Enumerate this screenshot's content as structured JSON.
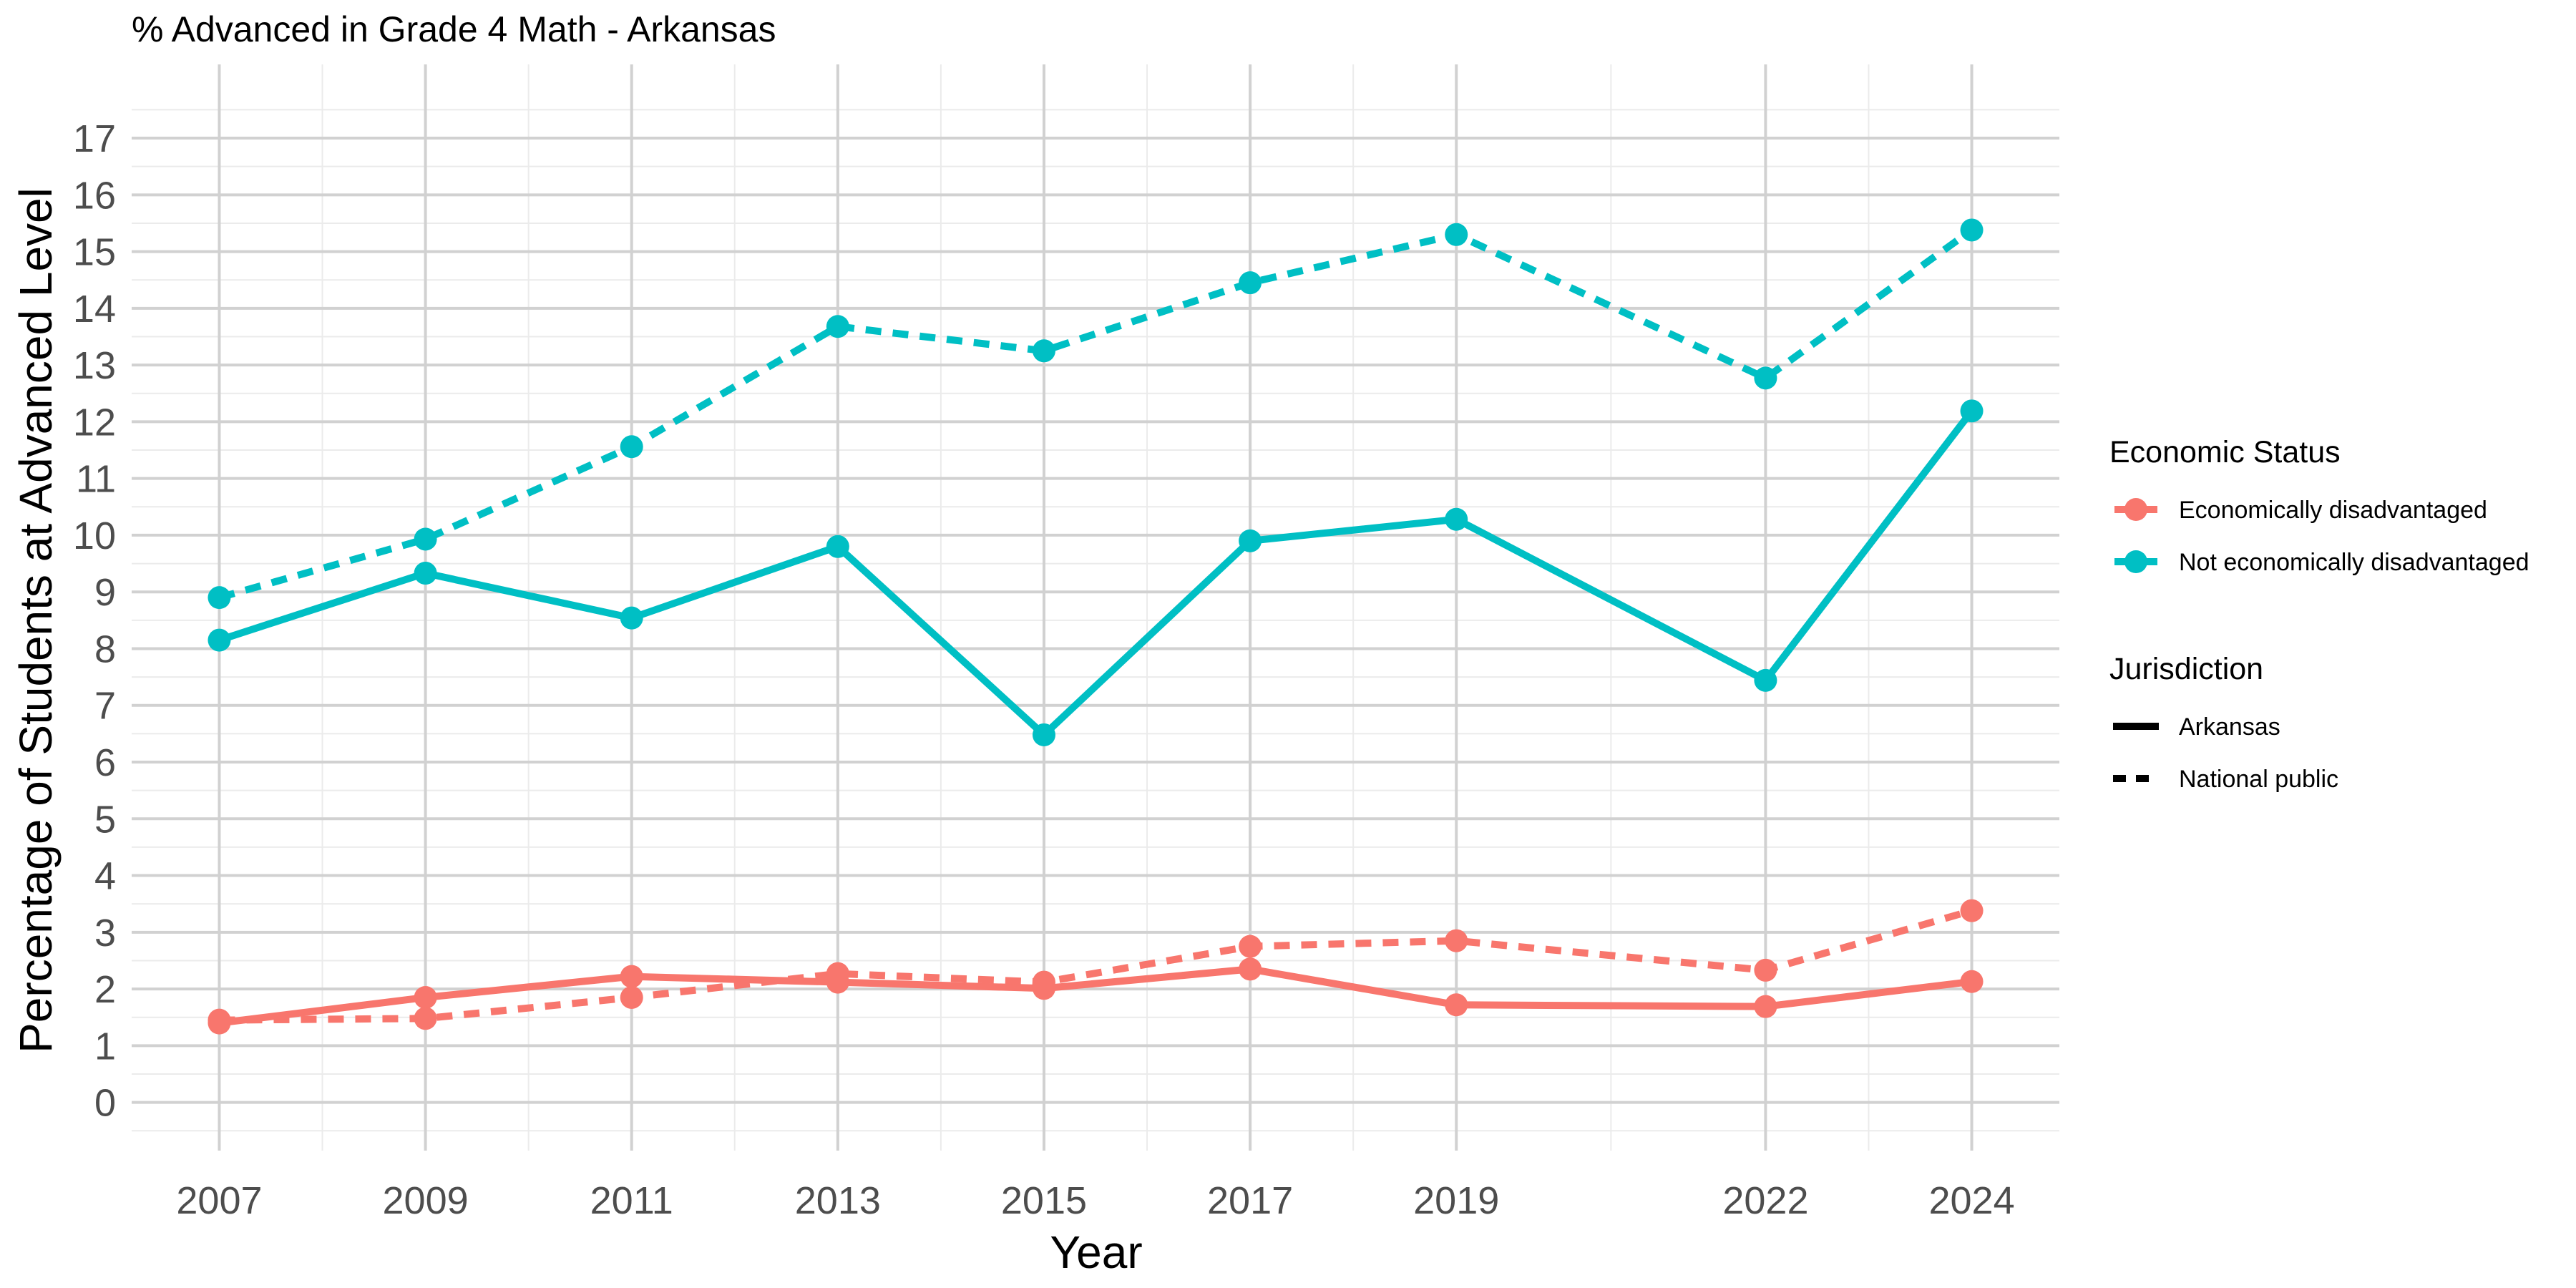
{
  "chart_data": {
    "type": "line",
    "title": "% Advanced in Grade 4 Math - Arkansas",
    "xlabel": "Year",
    "ylabel": "Percentage of Students at Advanced Level",
    "x": [
      2007,
      2009,
      2011,
      2013,
      2015,
      2017,
      2019,
      2022,
      2024
    ],
    "x_ticks": [
      "2007",
      "2009",
      "2011",
      "2013",
      "2015",
      "2017",
      "2019",
      "2022",
      "2024"
    ],
    "xlim": [
      2006.15,
      2024.85
    ],
    "ylim": [
      -0.85,
      18.3
    ],
    "y_ticks": [
      0,
      1,
      2,
      3,
      4,
      5,
      6,
      7,
      8,
      9,
      10,
      11,
      12,
      13,
      14,
      15,
      16,
      17
    ],
    "grid": true,
    "legend_placement": "right",
    "legend": {
      "color_title": "Economic Status",
      "color_entries": [
        {
          "label": "Economically disadvantaged",
          "color": "#F8766D"
        },
        {
          "label": "Not economically disadvantaged",
          "color": "#00BFC4"
        }
      ],
      "linetype_title": "Jurisdiction",
      "linetype_entries": [
        {
          "label": "Arkansas",
          "linetype": "solid"
        },
        {
          "label": "National public",
          "linetype": "dashed"
        }
      ]
    },
    "series": [
      {
        "status": "Economically disadvantaged",
        "jurisdiction": "Arkansas",
        "color": "#F8766D",
        "linetype": "solid",
        "values": [
          1.4,
          1.85,
          2.22,
          2.12,
          2.01,
          2.35,
          1.72,
          1.69,
          2.13
        ]
      },
      {
        "status": "Economically disadvantaged",
        "jurisdiction": "National public",
        "color": "#F8766D",
        "linetype": "dashed",
        "values": [
          1.45,
          1.48,
          1.85,
          2.27,
          2.12,
          2.75,
          2.85,
          2.33,
          3.38
        ]
      },
      {
        "status": "Not economically disadvantaged",
        "jurisdiction": "Arkansas",
        "color": "#00BFC4",
        "linetype": "solid",
        "values": [
          8.15,
          9.33,
          8.54,
          9.8,
          6.48,
          9.9,
          10.28,
          7.44,
          12.19
        ]
      },
      {
        "status": "Not economically disadvantaged",
        "jurisdiction": "National public",
        "color": "#00BFC4",
        "linetype": "dashed",
        "values": [
          8.9,
          9.93,
          11.56,
          13.68,
          13.25,
          14.45,
          15.3,
          12.77,
          15.38
        ]
      }
    ]
  }
}
